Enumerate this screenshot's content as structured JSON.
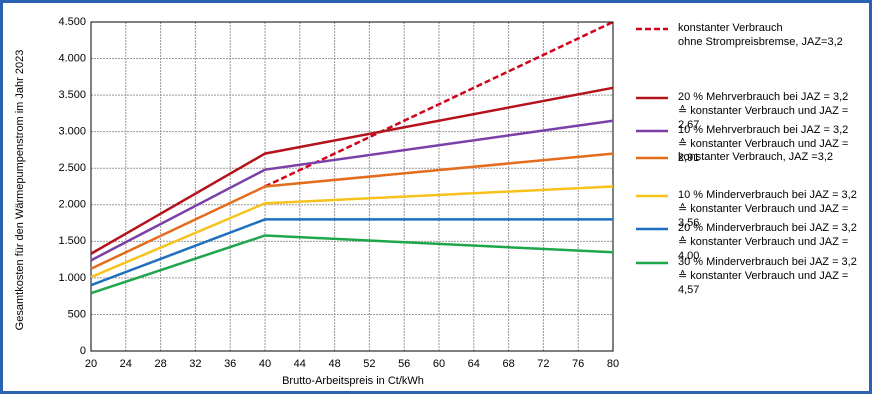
{
  "chart_data": {
    "type": "line",
    "x_label": "Brutto-Arbeitspreis in Ct/kWh",
    "y_label": "Gesamtkosten für den Wärmepumpenstrom im Jahr 2023",
    "x": [
      20,
      40,
      80
    ],
    "xlim": [
      20,
      80
    ],
    "xticks": [
      20,
      24,
      28,
      32,
      36,
      40,
      44,
      48,
      52,
      56,
      60,
      64,
      68,
      72,
      76,
      80
    ],
    "ylim": [
      0,
      4500
    ],
    "yticks": [
      0,
      500,
      {
        "value": 1000,
        "label": "1.000"
      },
      {
        "value": 1500,
        "label": "1.500"
      },
      {
        "value": 2000,
        "label": "2.000"
      },
      {
        "value": 2500,
        "label": "2.500"
      },
      {
        "value": 3000,
        "label": "3.000"
      },
      {
        "value": 3500,
        "label": "3.500"
      },
      {
        "value": 4000,
        "label": "4.000"
      },
      {
        "value": 4500,
        "label": "4.500"
      }
    ],
    "grid": true,
    "series": [
      {
        "name": "konstanter Verbrauch\nohne Strompreisbremse, JAZ=3,2",
        "color": "#d0021b",
        "dashed": true,
        "values": [
          null,
          2250,
          4500
        ]
      },
      {
        "name": "20 % Mehrverbrauch bei JAZ = 3,2\n≙ konstanter Verbrauch und JAZ = 2,67",
        "color": "#b5121b",
        "values": [
          1330,
          2700,
          3600
        ]
      },
      {
        "name": "10 % Mehrverbrauch bei JAZ = 3,2\n≙ konstanter Verbrauch und JAZ = 2,91",
        "color": "#7b3fa8",
        "values": [
          1240,
          2480,
          3150
        ]
      },
      {
        "name": "konstanter Verbrauch, JAZ =3,2",
        "color": "#e46c1c",
        "values": [
          1125,
          2250,
          2700
        ]
      },
      {
        "name": "10 % Minderverbrauch bei JAZ = 3,2\n≙ konstanter Verbrauch und JAZ = 3,56",
        "color": "#f6c21c",
        "values": [
          1010,
          2020,
          2250
        ]
      },
      {
        "name": "20 % Minderverbrauch bei JAZ = 3,2\n≙ konstanter Verbrauch und JAZ = 4,00",
        "color": "#1f6fbf",
        "values": [
          900,
          1800,
          1800
        ]
      },
      {
        "name": "30 % Minderverbrauch bei JAZ = 3,2\n≙ konstanter Verbrauch und JAZ = 4,57",
        "color": "#1ea64a",
        "values": [
          790,
          1580,
          1350
        ]
      }
    ]
  }
}
